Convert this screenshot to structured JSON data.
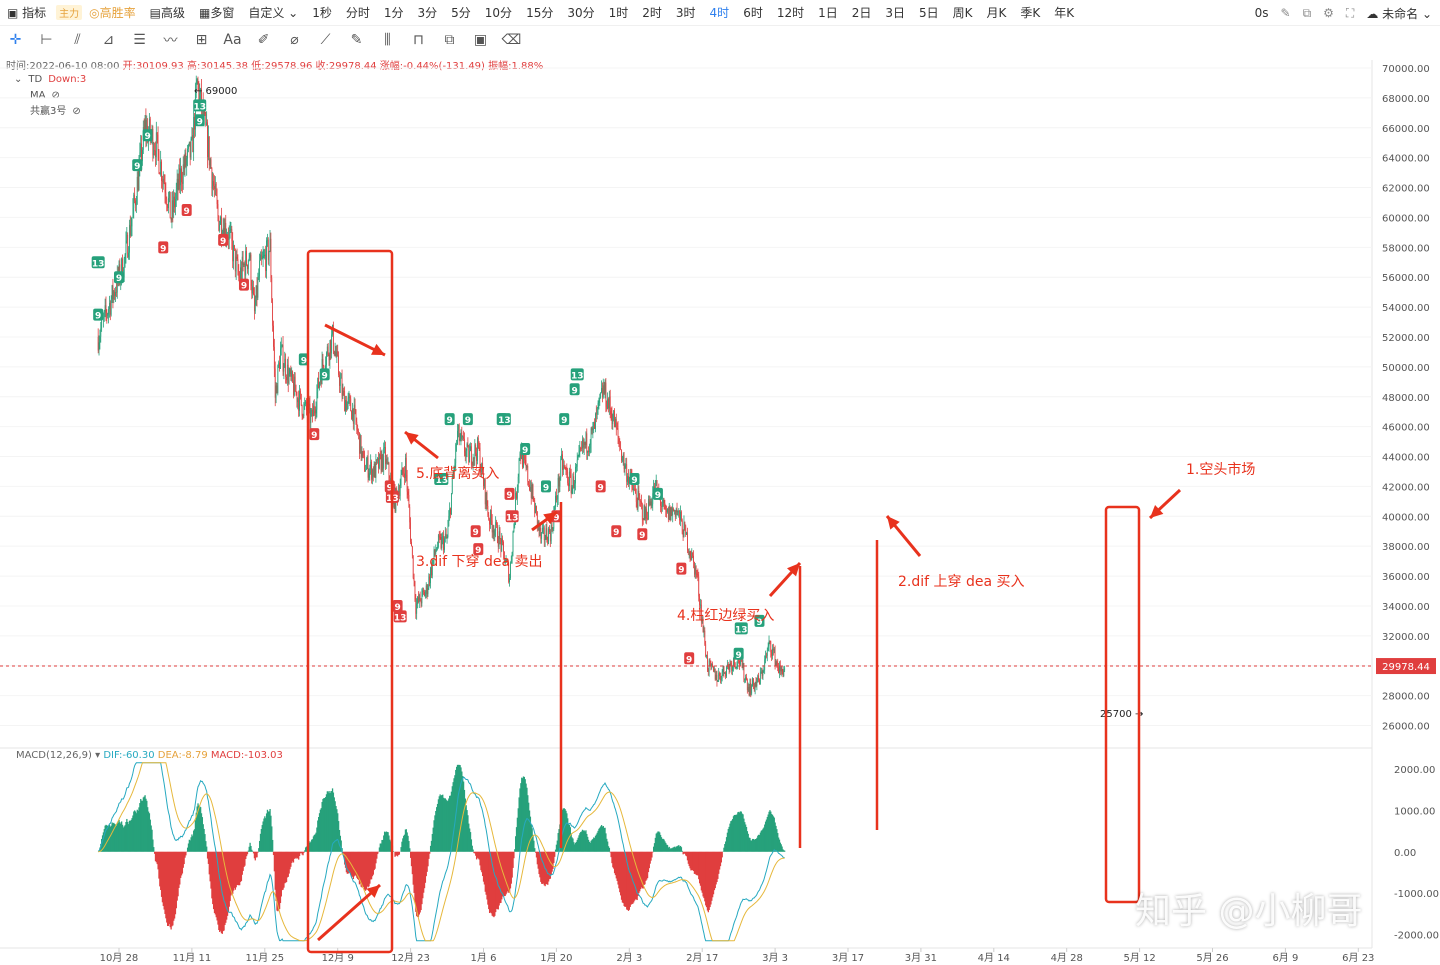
{
  "toolbar": {
    "items": [
      "指标",
      "高胜率",
      "高级",
      "多窗",
      "自定义",
      "1秒",
      "分时",
      "1分",
      "3分",
      "5分",
      "10分",
      "15分",
      "30分",
      "1时",
      "2时",
      "3时",
      "4时",
      "6时",
      "12时",
      "1日",
      "2日",
      "3日",
      "5日",
      "周K",
      "月K",
      "季K",
      "年K"
    ],
    "main_tag": "主力",
    "active": "4时",
    "right_time": "0s",
    "right_name": "未命名"
  },
  "info": {
    "time": "时间:2022-06-10 08:00",
    "open": "开:30109.93",
    "high": "高:30145.38",
    "low": "低:29578.96",
    "close": "收:29978.44",
    "change": "涨幅:-0.44%(-131.49)",
    "amp": "振幅:1.88%"
  },
  "legend": {
    "td": "TD",
    "td_down": "Down:3",
    "ma": "MA",
    "custom": "共赢3号"
  },
  "macd_legend": {
    "name": "MACD(12,26,9)",
    "dif": "DIF:-60.30",
    "dea": "DEA:-8.79",
    "macd": "MACD:-103.03"
  },
  "colors": {
    "up": "#26a17b",
    "down": "#e03e3e",
    "dif": "#26a9c0",
    "dea": "#e6b83c",
    "annotation": "#e8321d",
    "price_label": "#e03e3e"
  },
  "chart_data": {
    "type": "candlestick",
    "price_axis": [
      "70000.00",
      "68000.00",
      "66000.00",
      "64000.00",
      "62000.00",
      "60000.00",
      "58000.00",
      "56000.00",
      "54000.00",
      "52000.00",
      "50000.00",
      "48000.00",
      "46000.00",
      "44000.00",
      "42000.00",
      "40000.00",
      "38000.00",
      "36000.00",
      "34000.00",
      "32000.00",
      "30000.00",
      "28000.00",
      "26000.00"
    ],
    "price_ylim": [
      25000,
      70500
    ],
    "macd_axis": [
      "2000.00",
      "1000.00",
      "0.00",
      "-1000.00",
      "-2000.00"
    ],
    "macd_ylim": [
      -2200,
      2300
    ],
    "x_labels": [
      "10月 28",
      "11月 11",
      "11月 25",
      "12月 9",
      "12月 23",
      "1月 6",
      "1月 20",
      "2月 3",
      "2月 17",
      "3月 3",
      "3月 17",
      "3月 31",
      "4月 14",
      "4月 28",
      "5月 12",
      "5月 26",
      "6月 9",
      "6月 23"
    ],
    "last_price": "29978.44",
    "high_label": "69000",
    "low_label": "25700",
    "price_path": [
      [
        -4,
        52000
      ],
      [
        -1,
        55000
      ],
      [
        1,
        57000
      ],
      [
        3,
        61000
      ],
      [
        5,
        66000
      ],
      [
        7,
        65000
      ],
      [
        9,
        62000
      ],
      [
        10,
        60000
      ],
      [
        12,
        63000
      ],
      [
        14,
        64500
      ],
      [
        15,
        69000
      ],
      [
        17,
        65000
      ],
      [
        19,
        60000
      ],
      [
        21,
        59000
      ],
      [
        23,
        56000
      ],
      [
        25,
        57500
      ],
      [
        26,
        53500
      ],
      [
        27,
        56500
      ],
      [
        29,
        58000
      ],
      [
        30,
        48000
      ],
      [
        31,
        51000
      ],
      [
        33,
        49000
      ],
      [
        35,
        47500
      ],
      [
        37,
        46500
      ],
      [
        39,
        50000
      ],
      [
        41,
        52000
      ],
      [
        43,
        48000
      ],
      [
        45,
        47000
      ],
      [
        47,
        43500
      ],
      [
        49,
        43000
      ],
      [
        51,
        44000
      ],
      [
        53,
        41000
      ],
      [
        55,
        43500
      ],
      [
        57,
        34000
      ],
      [
        59,
        35000
      ],
      [
        61,
        38000
      ],
      [
        63,
        38500
      ],
      [
        65,
        45500
      ],
      [
        67,
        44000
      ],
      [
        69,
        44500
      ],
      [
        71,
        40000
      ],
      [
        73,
        38500
      ],
      [
        75,
        36000
      ],
      [
        77,
        44500
      ],
      [
        79,
        42000
      ],
      [
        81,
        38500
      ],
      [
        83,
        39000
      ],
      [
        85,
        43500
      ],
      [
        87,
        42000
      ],
      [
        89,
        44500
      ],
      [
        91,
        45500
      ],
      [
        93,
        48500
      ],
      [
        95,
        46500
      ],
      [
        97,
        43500
      ],
      [
        99,
        41500
      ],
      [
        101,
        40000
      ],
      [
        103,
        42000
      ],
      [
        105,
        40000
      ],
      [
        107,
        40500
      ],
      [
        109,
        38500
      ],
      [
        111,
        36000
      ],
      [
        113,
        30000
      ],
      [
        115,
        29200
      ],
      [
        117,
        30000
      ],
      [
        119,
        30500
      ],
      [
        121,
        28500
      ],
      [
        123,
        29000
      ],
      [
        125,
        31500
      ],
      [
        127,
        29500
      ],
      [
        128,
        30000
      ]
    ],
    "td_marks": [
      {
        "d": -4,
        "p": 53500,
        "t": "9",
        "s": "up"
      },
      {
        "d": -4,
        "p": 57000,
        "t": "13",
        "s": "up"
      },
      {
        "d": 0,
        "p": 56000,
        "t": "9",
        "s": "up"
      },
      {
        "d": 3.5,
        "p": 63500,
        "t": "9",
        "s": "up"
      },
      {
        "d": 5.5,
        "p": 65500,
        "t": "9",
        "s": "up"
      },
      {
        "d": 8.5,
        "p": 58000,
        "t": "9",
        "s": "down"
      },
      {
        "d": 13,
        "p": 60500,
        "t": "9",
        "s": "down"
      },
      {
        "d": 15.5,
        "p": 66500,
        "t": "9",
        "s": "up"
      },
      {
        "d": 15.5,
        "p": 67500,
        "t": "13",
        "s": "up"
      },
      {
        "d": 20,
        "p": 58500,
        "t": "9",
        "s": "down"
      },
      {
        "d": 24,
        "p": 55500,
        "t": "9",
        "s": "down"
      },
      {
        "d": 35.5,
        "p": 50500,
        "t": "9",
        "s": "up"
      },
      {
        "d": 37.5,
        "p": 45500,
        "t": "9",
        "s": "down"
      },
      {
        "d": 39.5,
        "p": 49500,
        "t": "9",
        "s": "up"
      },
      {
        "d": 52,
        "p": 42000,
        "t": "9",
        "s": "down"
      },
      {
        "d": 52.5,
        "p": 41300,
        "t": "13",
        "s": "down"
      },
      {
        "d": 53.5,
        "p": 34000,
        "t": "9",
        "s": "down"
      },
      {
        "d": 54,
        "p": 33300,
        "t": "13",
        "s": "down"
      },
      {
        "d": 61.5,
        "p": 42500,
        "t": "9",
        "s": "up"
      },
      {
        "d": 62,
        "p": 42500,
        "t": "13",
        "s": "up"
      },
      {
        "d": 63.5,
        "p": 46500,
        "t": "9",
        "s": "up"
      },
      {
        "d": 67,
        "p": 46500,
        "t": "9",
        "s": "up"
      },
      {
        "d": 68.5,
        "p": 39000,
        "t": "9",
        "s": "down"
      },
      {
        "d": 69,
        "p": 37800,
        "t": "9",
        "s": "down"
      },
      {
        "d": 73.5,
        "p": 46500,
        "t": "9",
        "s": "up"
      },
      {
        "d": 74,
        "p": 46500,
        "t": "13",
        "s": "up"
      },
      {
        "d": 75,
        "p": 41500,
        "t": "9",
        "s": "down"
      },
      {
        "d": 75.5,
        "p": 40000,
        "t": "13",
        "s": "down"
      },
      {
        "d": 78,
        "p": 44500,
        "t": "9",
        "s": "up"
      },
      {
        "d": 82,
        "p": 42000,
        "t": "9",
        "s": "up"
      },
      {
        "d": 84,
        "p": 40000,
        "t": "9",
        "s": "down"
      },
      {
        "d": 85.5,
        "p": 46500,
        "t": "9",
        "s": "up"
      },
      {
        "d": 87.5,
        "p": 48500,
        "t": "9",
        "s": "up"
      },
      {
        "d": 88,
        "p": 49500,
        "t": "13",
        "s": "up"
      },
      {
        "d": 92.5,
        "p": 42000,
        "t": "9",
        "s": "down"
      },
      {
        "d": 95.5,
        "p": 39000,
        "t": "9",
        "s": "down"
      },
      {
        "d": 99,
        "p": 42500,
        "t": "9",
        "s": "up"
      },
      {
        "d": 100.5,
        "p": 38800,
        "t": "9",
        "s": "down"
      },
      {
        "d": 103.5,
        "p": 41500,
        "t": "9",
        "s": "up"
      },
      {
        "d": 108,
        "p": 36500,
        "t": "9",
        "s": "down"
      },
      {
        "d": 109.5,
        "p": 30500,
        "t": "9",
        "s": "down"
      },
      {
        "d": 119,
        "p": 30800,
        "t": "9",
        "s": "up"
      },
      {
        "d": 119.5,
        "p": 32500,
        "t": "13",
        "s": "up"
      },
      {
        "d": 123,
        "p": 33000,
        "t": "9",
        "s": "up"
      }
    ],
    "annotations": [
      {
        "text": "1.空头市场"
      },
      {
        "text": "2.dif 上穿 dea 买入"
      },
      {
        "text": "3.dif 下穿 dea 卖出"
      },
      {
        "text": "4.柱红边绿买入"
      },
      {
        "text": "5.底背离买入"
      }
    ],
    "watermark": "知乎 @小柳哥"
  }
}
